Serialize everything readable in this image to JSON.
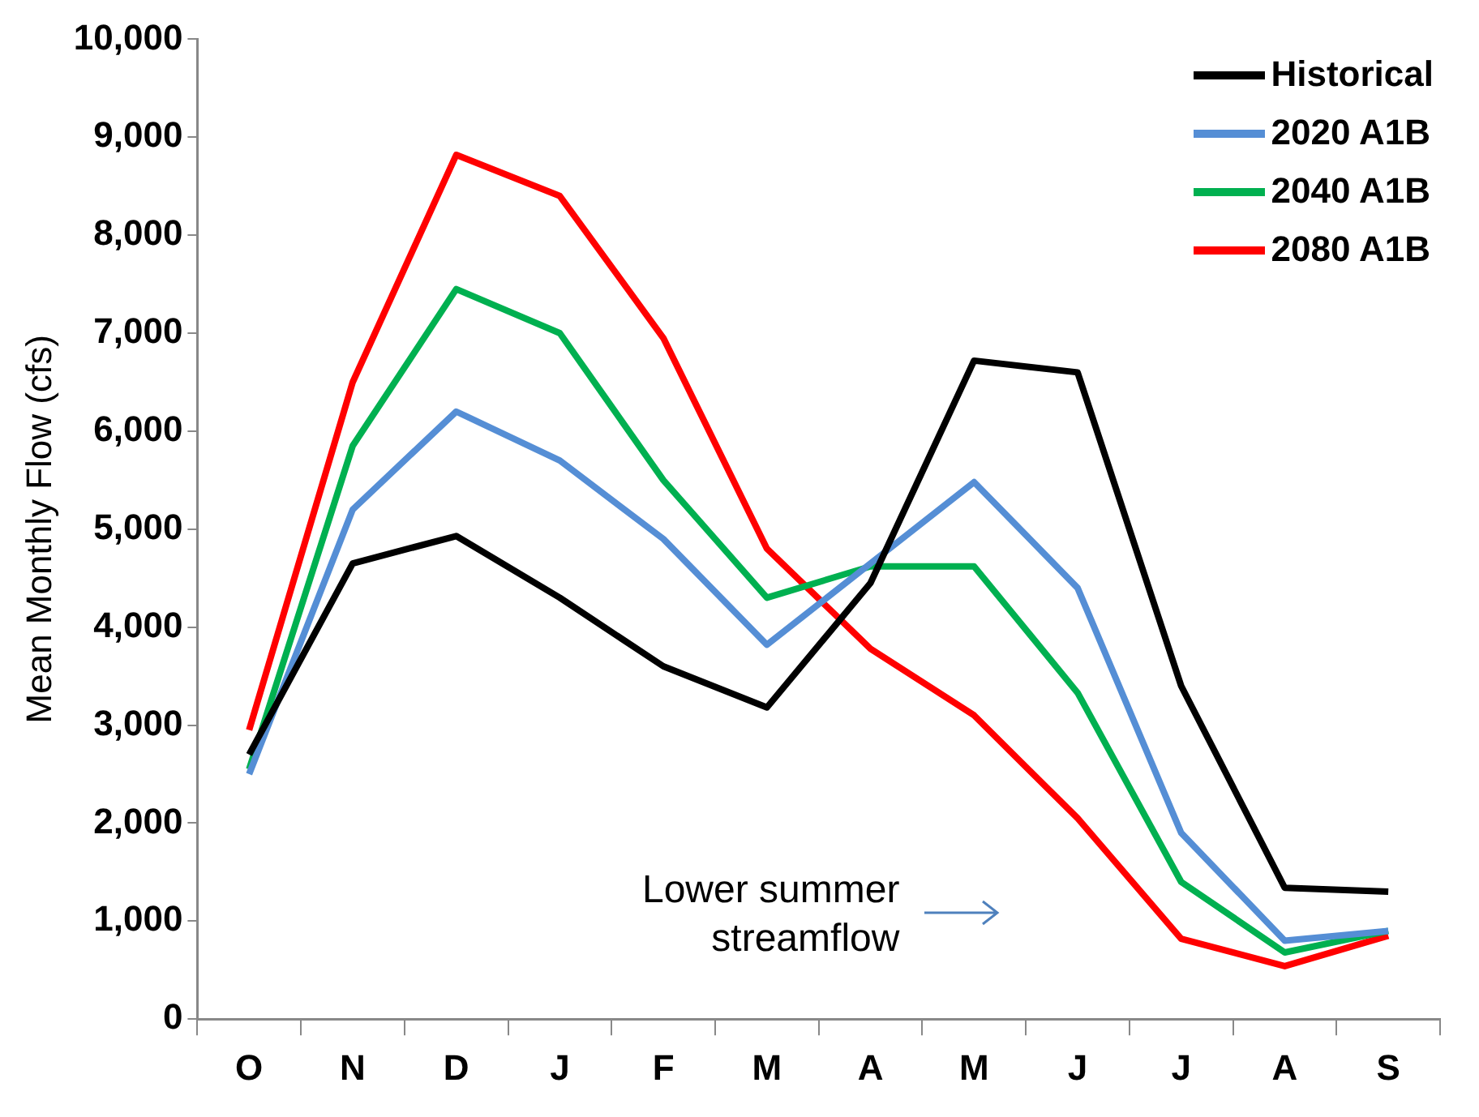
{
  "chart_data": {
    "type": "line",
    "ylabel": "Mean Monthly Flow (cfs)",
    "categories": [
      "O",
      "N",
      "D",
      "J",
      "F",
      "M",
      "A",
      "M",
      "J",
      "J",
      "A",
      "S"
    ],
    "series": [
      {
        "name": "Historical",
        "color": "#000000",
        "values": [
          2700,
          4650,
          4930,
          4300,
          3600,
          3180,
          4450,
          6720,
          6600,
          3400,
          1340,
          1300
        ]
      },
      {
        "name": "2020 A1B",
        "color": "#558ed5",
        "values": [
          2500,
          5200,
          6200,
          5700,
          4900,
          3820,
          4650,
          5480,
          4400,
          1900,
          800,
          900
        ]
      },
      {
        "name": "2040 A1B",
        "color": "#00b050",
        "values": [
          2550,
          5850,
          7450,
          7000,
          5500,
          4300,
          4620,
          4620,
          3330,
          1400,
          680,
          900
        ]
      },
      {
        "name": "2080 A1B",
        "color": "#ff0000",
        "values": [
          2950,
          6500,
          8820,
          8400,
          6950,
          4800,
          3780,
          3100,
          2050,
          820,
          540,
          850
        ]
      }
    ],
    "ylim": [
      0,
      10000
    ],
    "yticks": [
      {
        "value": 0,
        "label": "0"
      },
      {
        "value": 1000,
        "label": "1,000"
      },
      {
        "value": 2000,
        "label": "2,000"
      },
      {
        "value": 3000,
        "label": "3,000"
      },
      {
        "value": 4000,
        "label": "4,000"
      },
      {
        "value": 5000,
        "label": "5,000"
      },
      {
        "value": 6000,
        "label": "6,000"
      },
      {
        "value": 7000,
        "label": "7,000"
      },
      {
        "value": 8000,
        "label": "8,000"
      },
      {
        "value": 9000,
        "label": "9,000"
      },
      {
        "value": 10000,
        "label": "10,000"
      }
    ],
    "grid": false,
    "legend": "top right",
    "marker": "none",
    "line_style": "solid",
    "annotations": [
      "Lower summer\nstreamflow"
    ]
  }
}
